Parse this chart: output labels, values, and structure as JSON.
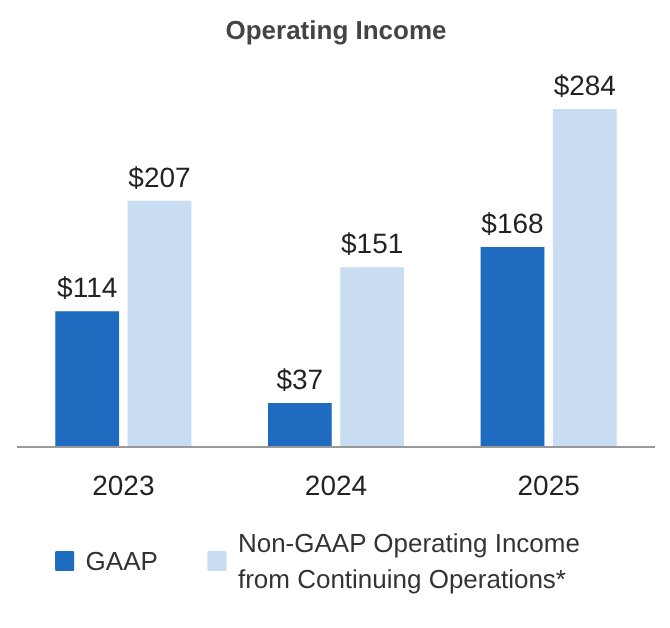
{
  "chart_data": {
    "type": "bar",
    "title": "Operating Income",
    "categories": [
      "2023",
      "2024",
      "2025"
    ],
    "series": [
      {
        "name": "GAAP",
        "color": "#1f6bbf",
        "values": [
          114,
          37,
          168
        ],
        "value_labels": [
          "$114",
          "$37",
          "$168"
        ]
      },
      {
        "name": "Non-GAAP Operating Income from Continuing Operations*",
        "color": "#c8dcf2",
        "values": [
          207,
          151,
          284
        ],
        "value_labels": [
          "$207",
          "$151",
          "$284"
        ]
      }
    ],
    "legend": "bottom"
  }
}
